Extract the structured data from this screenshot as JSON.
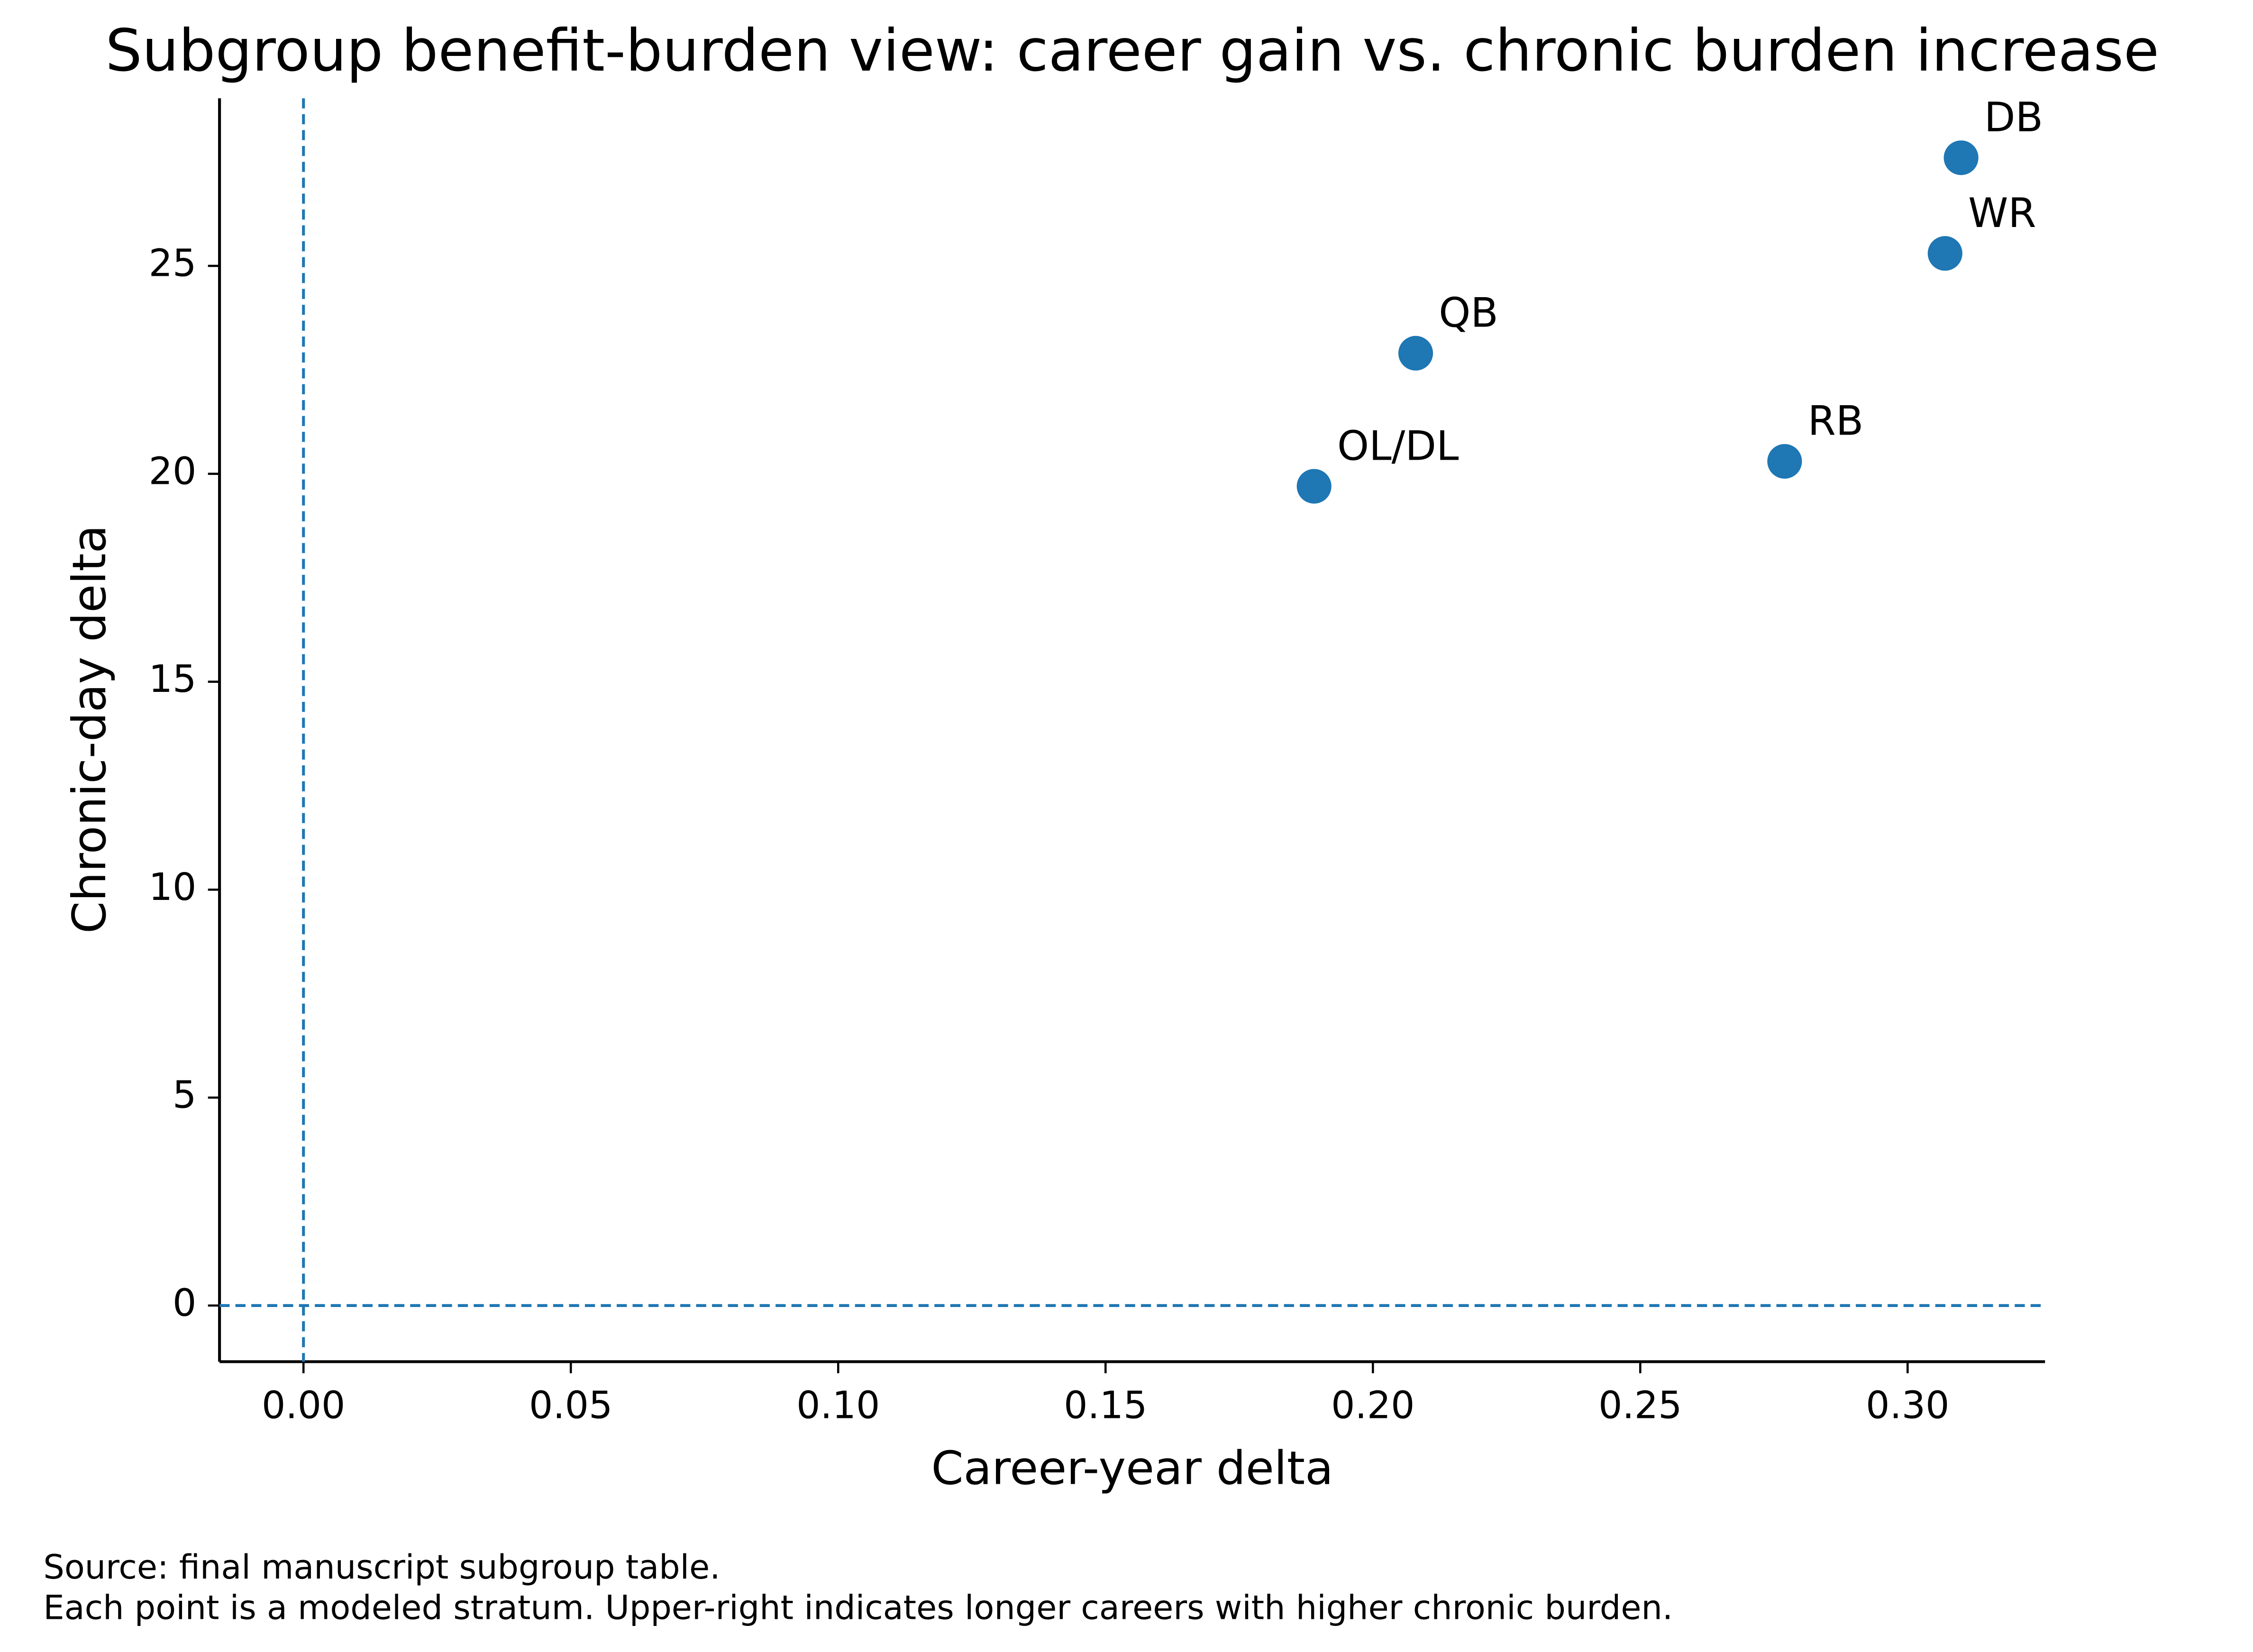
{
  "chart_data": {
    "type": "scatter",
    "title": "Subgroup benefit-burden view: career gain vs. chronic burden increase",
    "x_label": "Career-year delta",
    "y_label": "Chronic-day delta",
    "labels": [
      "OL/DL",
      "QB",
      "RB",
      "WR",
      "DB"
    ],
    "x": [
      0.189,
      0.208,
      0.277,
      0.307,
      0.31
    ],
    "y": [
      19.7,
      22.9,
      20.3,
      25.3,
      27.6
    ],
    "color": "#1f77b4",
    "xlim": [
      -0.0157,
      0.3257
    ],
    "ylim": [
      -1.35,
      29.03
    ],
    "xticks": [
      {
        "value": 0,
        "label": "0.00"
      },
      {
        "value": 0.05,
        "label": "0.05"
      },
      {
        "value": 0.1,
        "label": "0.10"
      },
      {
        "value": 0.15,
        "label": "0.15"
      },
      {
        "value": 0.2,
        "label": "0.20"
      },
      {
        "value": 0.25,
        "label": "0.25"
      },
      {
        "value": 0.3,
        "label": "0.30"
      }
    ],
    "yticks": [
      0,
      5,
      10,
      15,
      20,
      25
    ],
    "hlines": [
      0
    ],
    "vlines": [
      0
    ],
    "grid": false,
    "notes": [
      "Source: final manuscript subgroup table.",
      "Each point is a modeled stratum. Upper-right indicates longer careers with higher chronic burden."
    ]
  }
}
